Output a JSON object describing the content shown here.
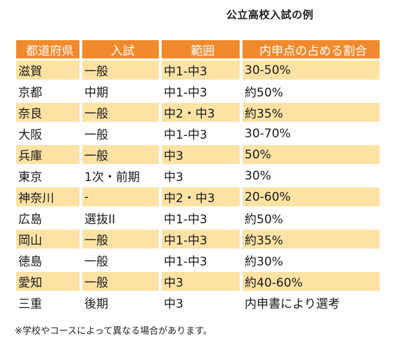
{
  "title": "公立高校入試の例",
  "table": {
    "headers": [
      "都道府県",
      "入試",
      "範囲",
      "内申点の占める割合"
    ],
    "rows": [
      [
        "滋賀",
        "一般",
        "中1-中3",
        "30-50%"
      ],
      [
        "京都",
        "中期",
        "中1-中3",
        "約50%"
      ],
      [
        "奈良",
        "一般",
        "中2・中3",
        "約35%"
      ],
      [
        "大阪",
        "一般",
        "中1-中3",
        "30-70%"
      ],
      [
        "兵庫",
        "一般",
        "中3",
        "50%"
      ],
      [
        "東京",
        "1次・前期",
        "中3",
        "30%"
      ],
      [
        "神奈川",
        "-",
        "中2・中3",
        "20-60%"
      ],
      [
        "広島",
        "選抜II",
        "中1-中3",
        "約50%"
      ],
      [
        "岡山",
        "一般",
        "中1-中3",
        "約35%"
      ],
      [
        "徳島",
        "一般",
        "中1-中3",
        "約30%"
      ],
      [
        "愛知",
        "一般",
        "中3",
        "約40-60%"
      ],
      [
        "三重",
        "後期",
        "中3",
        "内申書により選考"
      ]
    ]
  },
  "note": "※学校やコースによって異なる場合があります。",
  "colors": {
    "header_bg": "#f08a2c",
    "stripe_bg": "#fde2a4"
  }
}
